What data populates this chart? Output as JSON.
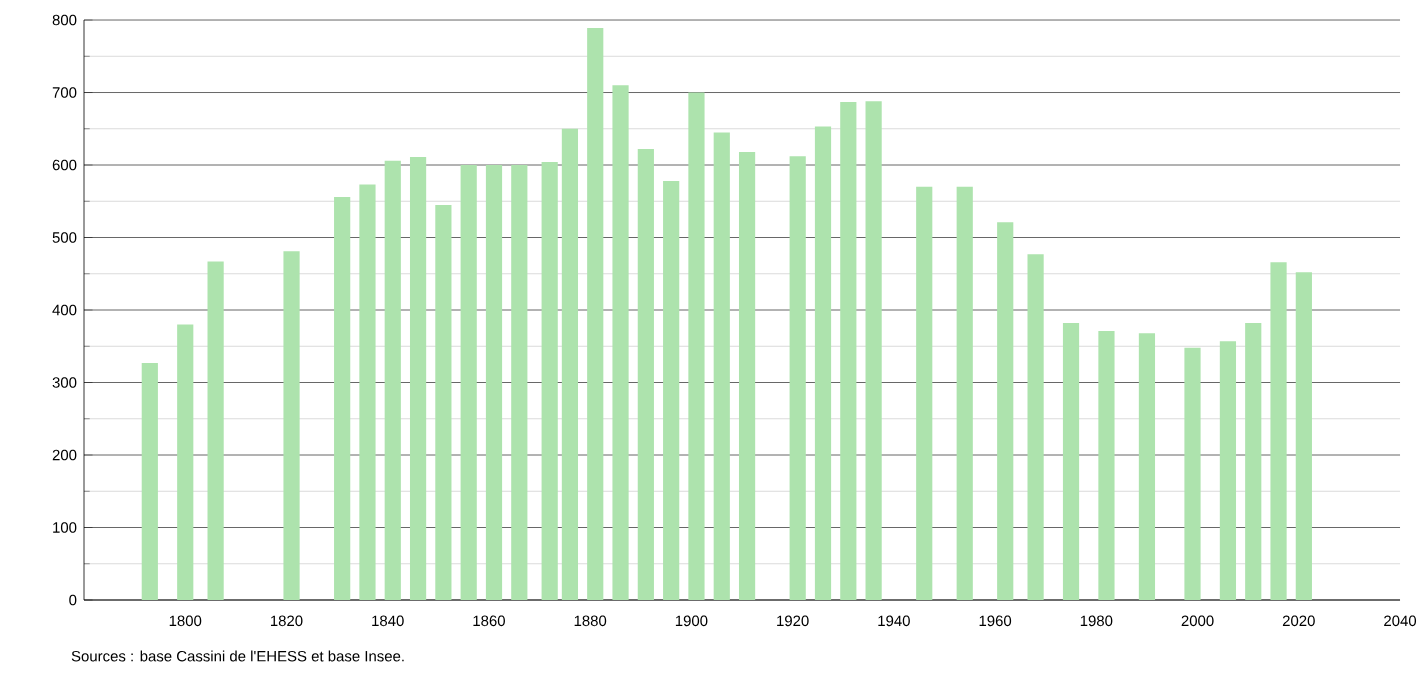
{
  "chart_data": {
    "type": "bar",
    "x": [
      1793,
      1800,
      1806,
      1821,
      1831,
      1836,
      1841,
      1846,
      1851,
      1856,
      1861,
      1866,
      1872,
      1876,
      1881,
      1886,
      1891,
      1896,
      1901,
      1906,
      1911,
      1921,
      1926,
      1931,
      1936,
      1946,
      1954,
      1962,
      1968,
      1975,
      1982,
      1990,
      1999,
      2006,
      2011,
      2016,
      2021
    ],
    "values": [
      327,
      380,
      467,
      481,
      556,
      573,
      606,
      611,
      545,
      600,
      600,
      600,
      604,
      650,
      789,
      710,
      622,
      578,
      700,
      645,
      618,
      612,
      653,
      687,
      688,
      570,
      570,
      521,
      477,
      382,
      371,
      368,
      348,
      357,
      382,
      466,
      452
    ],
    "color": "#ade3ad",
    "xlim": [
      1780,
      2040
    ],
    "ylim": [
      0,
      800
    ],
    "xticks": [
      1800,
      1820,
      1840,
      1860,
      1880,
      1900,
      1920,
      1940,
      1960,
      1980,
      2000,
      2020,
      2040
    ],
    "yticks": [
      0,
      100,
      200,
      300,
      400,
      500,
      600,
      700,
      800
    ],
    "grid": "y",
    "annotations": [
      "Sources : base Cassini de l'EHESS et base Insee."
    ]
  }
}
